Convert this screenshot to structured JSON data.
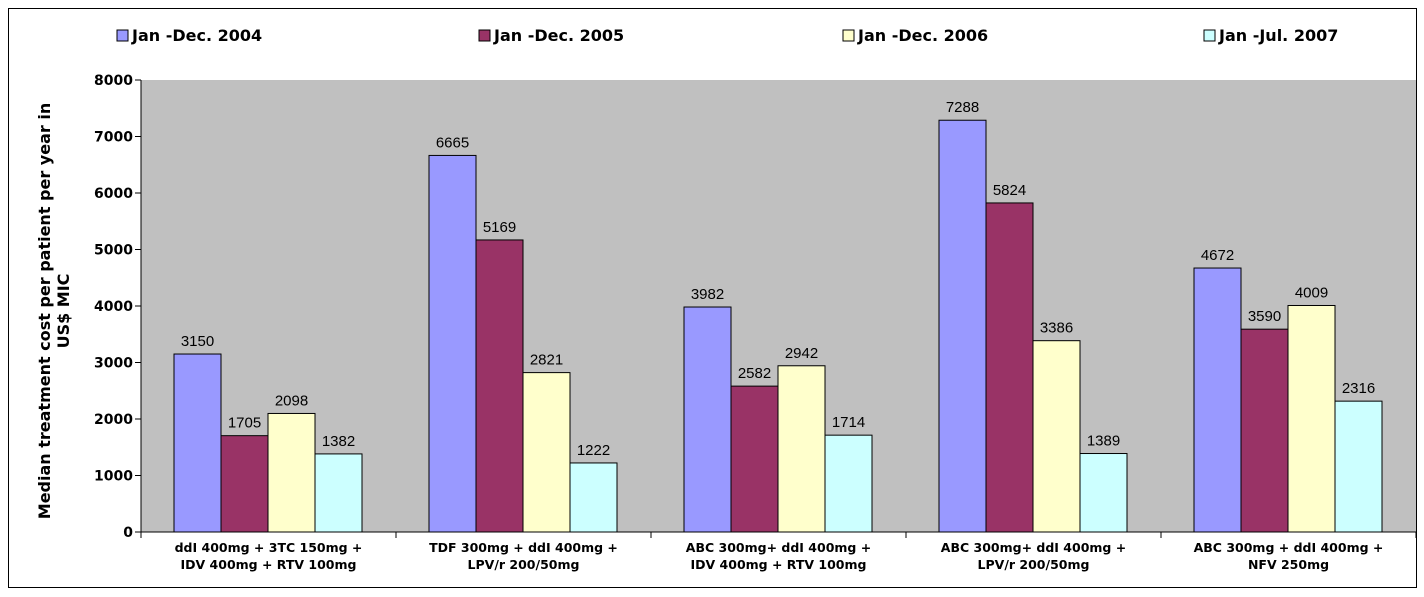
{
  "chart_data": {
    "type": "bar",
    "title": "",
    "ylabel_lines": [
      "Median treatment cost per patient per year in",
      "US$ MIC"
    ],
    "xlabel": "",
    "ylim": [
      0,
      8000
    ],
    "yticks": [
      0,
      1000,
      2000,
      3000,
      4000,
      5000,
      6000,
      7000,
      8000
    ],
    "grid": false,
    "legend_position": "top",
    "categories": [
      [
        "ddI 400mg + 3TC 150mg +",
        "IDV 400mg + RTV 100mg"
      ],
      [
        "TDF 300mg + ddI 400mg +",
        "LPV/r 200/50mg"
      ],
      [
        "ABC 300mg+ ddI 400mg +",
        "IDV 400mg + RTV 100mg"
      ],
      [
        "ABC 300mg+ ddI 400mg +",
        "LPV/r 200/50mg"
      ],
      [
        "ABC 300mg + ddI 400mg +",
        "NFV 250mg"
      ]
    ],
    "series": [
      {
        "name": "Jan -Dec. 2004",
        "color": "#9999ff",
        "values": [
          3150,
          6665,
          3982,
          7288,
          4672
        ]
      },
      {
        "name": "Jan -Dec. 2005",
        "color": "#993366",
        "values": [
          1705,
          5169,
          2582,
          5824,
          3590
        ]
      },
      {
        "name": "Jan -Dec. 2006",
        "color": "#ffffcc",
        "values": [
          2098,
          2821,
          2942,
          3386,
          4009
        ]
      },
      {
        "name": "Jan -Jul.  2007",
        "color": "#ccffff",
        "values": [
          1382,
          1222,
          1714,
          1389,
          2316
        ]
      }
    ],
    "plot_background": "#c0c0c0"
  }
}
